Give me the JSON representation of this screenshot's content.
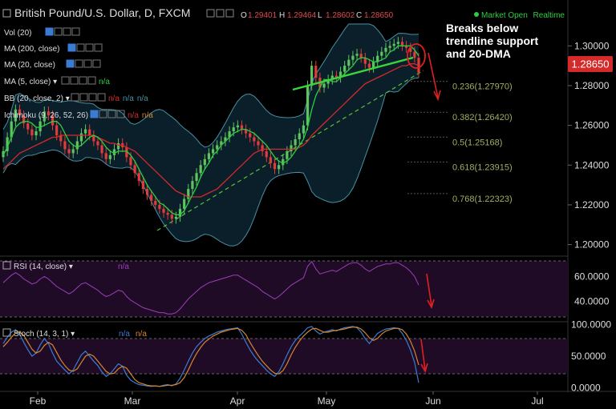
{
  "header": {
    "symbol_title": "British Pound/U.S. Dollar, D, FXCM",
    "ohlc": [
      {
        "label": "O",
        "value": "1.29401"
      },
      {
        "label": "H",
        "value": "1.29464"
      },
      {
        "label": "L",
        "value": "1.28602"
      },
      {
        "label": "C",
        "value": "1.28650"
      }
    ],
    "market_status": "Market Open",
    "realtime": "Realtime"
  },
  "indicators": [
    {
      "label": "Vol (20)",
      "value": ""
    },
    {
      "label": "MA (200, close)",
      "value": ""
    },
    {
      "label": "MA (20, close)",
      "value": ""
    },
    {
      "label": "MA (5, close)",
      "value": "n/a"
    },
    {
      "label": "BB (20, close, 2)",
      "value": "n/a n/a n/a"
    },
    {
      "label": "Ichimoku (9, 26, 52, 26)",
      "value": "n/a n/a"
    }
  ],
  "annotation": {
    "lines": [
      "Breaks below",
      "trendline support",
      "and 20-DMA"
    ]
  },
  "price_badge": "1.28650",
  "colors": {
    "background": "#000000",
    "up_candle": "#5fc35f",
    "down_candle": "#e23b3b",
    "ma20": "#d42a2a",
    "ma5": "#2ecc40",
    "bollinger": "#4a8fa0",
    "bollinger_fill": "#0a1f2a",
    "trendline": "#3bd43b",
    "dashed_trend": "#5fbf3a",
    "fib": "#9fb060",
    "rsi": "#9b3fb8",
    "stoch_k": "#3b7bd4",
    "stoch_d": "#d4862e",
    "osc_fill": "#1f0b26",
    "arrow": "#e02020",
    "badge": "#d42a2a"
  },
  "chart_data": {
    "type": "candlestick",
    "price_axis": {
      "ticks": [
        "1.30000",
        "1.28000",
        "1.26000",
        "1.24000",
        "1.22000",
        "1.20000"
      ],
      "ylim": [
        1.195,
        1.311
      ]
    },
    "x_axis": {
      "ticks": [
        "Feb",
        "Mar",
        "Apr",
        "May",
        "Jun",
        "Jul"
      ]
    },
    "fibonacci": [
      {
        "label": "0.236(1.27970)",
        "value": 1.2797
      },
      {
        "label": "0.382(1.26420)",
        "value": 1.2642
      },
      {
        "label": "0.5(1.25168)",
        "value": 1.25168
      },
      {
        "label": "0.618(1.23915)",
        "value": 1.23915
      },
      {
        "label": "0.768(1.22323)",
        "value": 1.22323
      }
    ],
    "close": [
      1.247,
      1.254,
      1.262,
      1.268,
      1.265,
      1.261,
      1.258,
      1.255,
      1.257,
      1.262,
      1.267,
      1.265,
      1.26,
      1.255,
      1.252,
      1.248,
      1.246,
      1.248,
      1.252,
      1.256,
      1.258,
      1.255,
      1.252,
      1.25,
      1.246,
      1.243,
      1.245,
      1.248,
      1.251,
      1.249,
      1.244,
      1.24,
      1.236,
      1.232,
      1.228,
      1.225,
      1.222,
      1.22,
      1.218,
      1.216,
      1.215,
      1.213,
      1.214,
      1.218,
      1.223,
      1.228,
      1.232,
      1.236,
      1.24,
      1.243,
      1.246,
      1.248,
      1.25,
      1.252,
      1.254,
      1.257,
      1.259,
      1.26,
      1.258,
      1.256,
      1.254,
      1.252,
      1.25,
      1.247,
      1.244,
      1.241,
      1.238,
      1.24,
      1.243,
      1.247,
      1.25,
      1.253,
      1.256,
      1.26,
      1.28,
      1.29,
      1.284,
      1.279,
      1.281,
      1.283,
      1.285,
      1.284,
      1.287,
      1.29,
      1.293,
      1.295,
      1.296,
      1.294,
      1.291,
      1.289,
      1.292,
      1.295,
      1.297,
      1.299,
      1.3,
      1.301,
      1.302,
      1.3,
      1.299,
      1.297,
      1.294,
      1.2865
    ],
    "ma5": [
      1.245,
      1.249,
      1.254,
      1.259,
      1.261,
      1.262,
      1.262,
      1.261,
      1.259,
      1.259,
      1.26,
      1.261,
      1.262,
      1.262,
      1.26,
      1.256,
      1.252,
      1.25,
      1.249,
      1.25,
      1.252,
      1.254,
      1.255,
      1.254,
      1.252,
      1.249,
      1.247,
      1.246,
      1.247,
      1.247,
      1.247,
      1.245,
      1.242,
      1.238,
      1.234,
      1.23,
      1.227,
      1.224,
      1.221,
      1.22,
      1.218,
      1.216,
      1.215,
      1.215,
      1.217,
      1.221,
      1.225,
      1.229,
      1.234,
      1.238,
      1.241,
      1.245,
      1.247,
      1.25,
      1.252,
      1.254,
      1.256,
      1.257,
      1.258,
      1.258,
      1.257,
      1.256,
      1.254,
      1.252,
      1.25,
      1.247,
      1.244,
      1.242,
      1.241,
      1.242,
      1.244,
      1.247,
      1.25,
      1.253,
      1.259,
      1.268,
      1.275,
      1.279,
      1.283,
      1.283,
      1.282,
      1.282,
      1.284,
      1.286,
      1.288,
      1.29,
      1.293,
      1.294,
      1.294,
      1.293,
      1.292,
      1.292,
      1.293,
      1.294,
      1.297,
      1.298,
      1.3,
      1.3,
      1.3,
      1.3,
      1.298,
      1.295
    ],
    "ma20": [
      1.238,
      1.24,
      1.242,
      1.244,
      1.246,
      1.247,
      1.248,
      1.249,
      1.25,
      1.251,
      1.252,
      1.253,
      1.254,
      1.254,
      1.255,
      1.255,
      1.255,
      1.255,
      1.255,
      1.255,
      1.255,
      1.255,
      1.255,
      1.254,
      1.253,
      1.252,
      1.251,
      1.251,
      1.25,
      1.25,
      1.249,
      1.248,
      1.247,
      1.245,
      1.243,
      1.241,
      1.239,
      1.237,
      1.235,
      1.233,
      1.231,
      1.229,
      1.227,
      1.226,
      1.225,
      1.224,
      1.224,
      1.224,
      1.224,
      1.225,
      1.226,
      1.227,
      1.228,
      1.23,
      1.232,
      1.234,
      1.236,
      1.238,
      1.24,
      1.242,
      1.244,
      1.246,
      1.247,
      1.248,
      1.248,
      1.248,
      1.248,
      1.248,
      1.248,
      1.248,
      1.248,
      1.248,
      1.249,
      1.25,
      1.252,
      1.255,
      1.257,
      1.259,
      1.261,
      1.263,
      1.265,
      1.267,
      1.269,
      1.271,
      1.273,
      1.275,
      1.277,
      1.279,
      1.281,
      1.282,
      1.283,
      1.284,
      1.285,
      1.286,
      1.287,
      1.288,
      1.289,
      1.29,
      1.29,
      1.291,
      1.291,
      1.29
    ],
    "rsi_axis": {
      "ticks": [
        "60.0000",
        "40.0000"
      ],
      "ylim": [
        25,
        75
      ]
    },
    "rsi": [
      55,
      58,
      61,
      63,
      61,
      58,
      56,
      54,
      55,
      58,
      60,
      58,
      55,
      52,
      50,
      48,
      46,
      48,
      51,
      54,
      55,
      53,
      51,
      49,
      46,
      44,
      45,
      47,
      49,
      48,
      44,
      41,
      39,
      37,
      35,
      34,
      33,
      32,
      31,
      31,
      30,
      30,
      31,
      34,
      38,
      42,
      45,
      48,
      51,
      53,
      55,
      56,
      57,
      58,
      59,
      60,
      61,
      61,
      59,
      57,
      55,
      53,
      51,
      48,
      46,
      44,
      42,
      44,
      47,
      50,
      53,
      55,
      57,
      59,
      68,
      72,
      66,
      62,
      63,
      64,
      65,
      64,
      66,
      68,
      70,
      71,
      71,
      69,
      66,
      64,
      66,
      68,
      69,
      70,
      70,
      71,
      71,
      69,
      67,
      64,
      60,
      53
    ],
    "stoch_axis": {
      "ticks": [
        "100.0000",
        "50.0000",
        "0.0000"
      ],
      "ylim": [
        -2,
        102
      ]
    },
    "stoch_k": [
      70,
      80,
      88,
      92,
      85,
      72,
      60,
      50,
      55,
      68,
      78,
      70,
      55,
      42,
      35,
      28,
      22,
      28,
      40,
      52,
      58,
      50,
      42,
      35,
      25,
      18,
      22,
      30,
      38,
      34,
      20,
      12,
      8,
      5,
      4,
      3,
      2,
      3,
      2,
      4,
      5,
      3,
      6,
      15,
      28,
      42,
      55,
      65,
      72,
      78,
      82,
      85,
      88,
      90,
      92,
      93,
      94,
      95,
      85,
      72,
      60,
      50,
      42,
      35,
      28,
      22,
      18,
      25,
      38,
      52,
      65,
      75,
      82,
      88,
      95,
      97,
      90,
      85,
      88,
      90,
      92,
      90,
      93,
      95,
      96,
      97,
      95,
      88,
      78,
      70,
      78,
      86,
      90,
      93,
      94,
      95,
      94,
      86,
      75,
      60,
      40,
      8
    ],
    "stoch_d": [
      65,
      72,
      80,
      87,
      88,
      83,
      72,
      61,
      55,
      58,
      67,
      72,
      68,
      56,
      44,
      35,
      28,
      26,
      30,
      40,
      50,
      53,
      50,
      42,
      34,
      26,
      22,
      23,
      30,
      34,
      31,
      22,
      13,
      8,
      6,
      4,
      3,
      3,
      2,
      3,
      4,
      4,
      5,
      8,
      16,
      28,
      42,
      54,
      64,
      72,
      77,
      82,
      85,
      88,
      90,
      92,
      93,
      94,
      91,
      84,
      72,
      61,
      51,
      42,
      35,
      28,
      23,
      22,
      27,
      38,
      52,
      64,
      74,
      82,
      88,
      93,
      94,
      91,
      88,
      88,
      90,
      91,
      92,
      93,
      95,
      96,
      96,
      93,
      87,
      79,
      75,
      78,
      85,
      90,
      92,
      94,
      94,
      92,
      85,
      74,
      58,
      36
    ]
  }
}
